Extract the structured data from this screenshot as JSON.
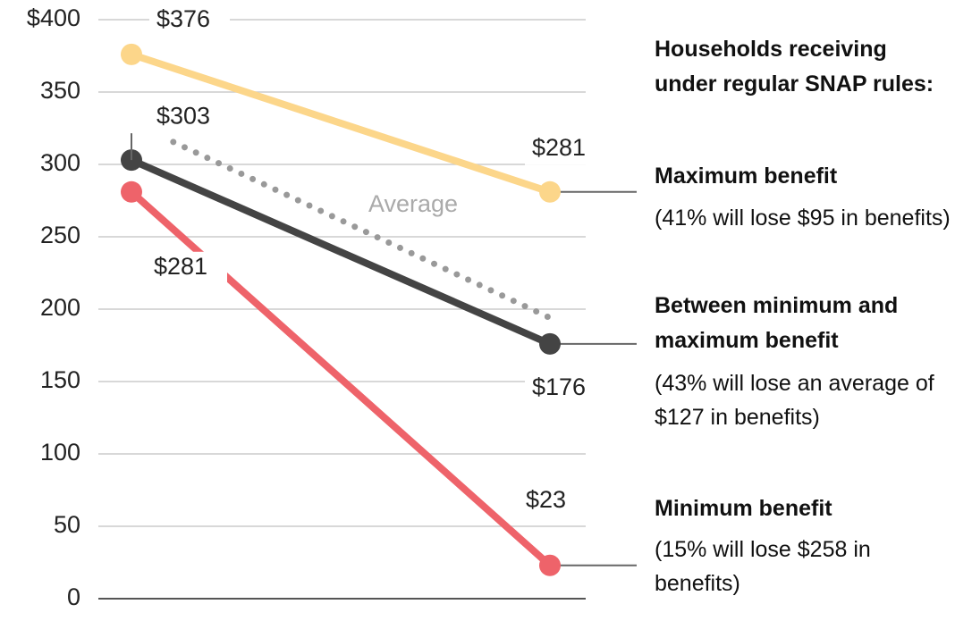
{
  "chart_data": {
    "type": "line",
    "categories": [
      null,
      null
    ],
    "series": [
      {
        "name": "Maximum benefit",
        "note": "(41% will lose $95 in benefits)",
        "color": "#fcd68a",
        "values": [
          376,
          281
        ],
        "value_labels": [
          "$376",
          "$281"
        ]
      },
      {
        "name": "Between minimum and maximum benefit",
        "note": "(43% will lose an average of $127 in benefits)",
        "color": "#444444",
        "values": [
          303,
          176
        ],
        "value_labels": [
          "$303",
          "$176"
        ]
      },
      {
        "name": "Minimum benefit",
        "note": "(15% will lose $258 in benefits)",
        "color": "#ee636a",
        "values": [
          281,
          23
        ],
        "value_labels": [
          "$281",
          "$23"
        ]
      }
    ],
    "average": {
      "name": "Average",
      "color": "#999999",
      "values": [
        329,
        194
      ]
    },
    "legend_title": "Households receiving under regular SNAP rules:",
    "ylim": [
      0,
      400
    ],
    "yticks": [
      0,
      50,
      100,
      150,
      200,
      250,
      300,
      350,
      {
        "value": 400,
        "label": "$400"
      }
    ],
    "grid": true
  }
}
